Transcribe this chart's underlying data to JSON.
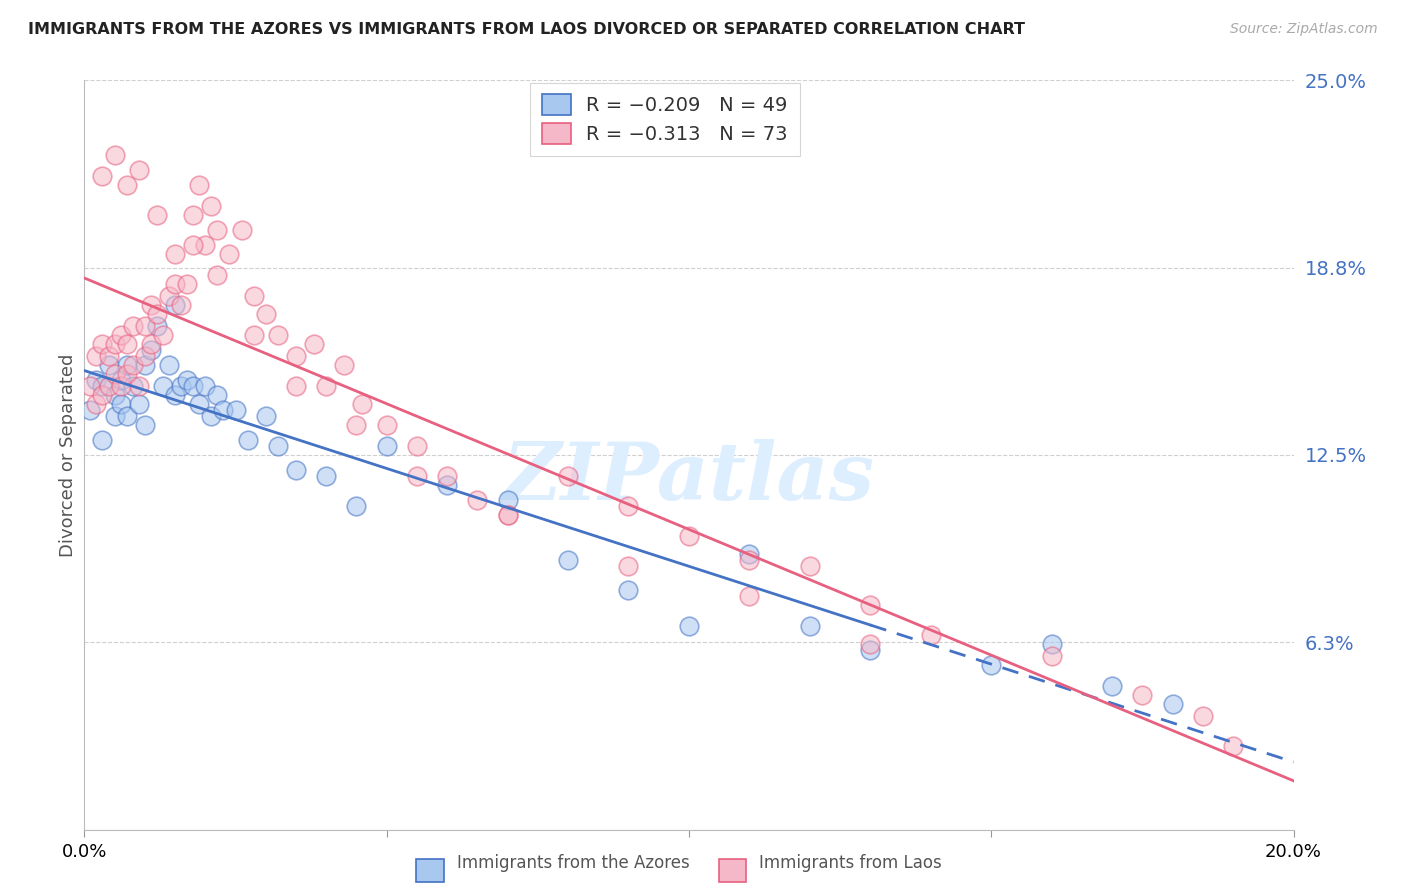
{
  "title": "IMMIGRANTS FROM THE AZORES VS IMMIGRANTS FROM LAOS DIVORCED OR SEPARATED CORRELATION CHART",
  "source": "Source: ZipAtlas.com",
  "ylabel": "Divorced or Separated",
  "xmin": 0.0,
  "xmax": 0.2,
  "ymin": 0.0,
  "ymax": 0.25,
  "yticks": [
    0.0,
    0.0625,
    0.125,
    0.1875,
    0.25
  ],
  "ytick_labels": [
    "",
    "6.3%",
    "12.5%",
    "18.8%",
    "25.0%"
  ],
  "xticks": [
    0.0,
    0.05,
    0.1,
    0.15,
    0.2
  ],
  "xtick_labels": [
    "0.0%",
    "",
    "",
    "",
    "20.0%"
  ],
  "legend_r1": "R = −0.209",
  "legend_n1": "N = 49",
  "legend_r2": "R = −0.313",
  "legend_n2": "N = 73",
  "color_azores": "#a8c8f0",
  "color_laos": "#f5b8c8",
  "color_line_azores": "#4472c4",
  "color_line_laos": "#e86080",
  "watermark": "ZIPatlas",
  "watermark_color": "#ddeeff",
  "azores_x": [
    0.001,
    0.002,
    0.003,
    0.003,
    0.004,
    0.005,
    0.005,
    0.006,
    0.006,
    0.007,
    0.007,
    0.008,
    0.009,
    0.01,
    0.01,
    0.011,
    0.012,
    0.013,
    0.014,
    0.015,
    0.015,
    0.016,
    0.017,
    0.018,
    0.019,
    0.02,
    0.021,
    0.022,
    0.023,
    0.025,
    0.027,
    0.03,
    0.032,
    0.035,
    0.04,
    0.045,
    0.05,
    0.06,
    0.07,
    0.08,
    0.09,
    0.1,
    0.11,
    0.12,
    0.13,
    0.15,
    0.16,
    0.17,
    0.18
  ],
  "azores_y": [
    0.14,
    0.15,
    0.148,
    0.13,
    0.155,
    0.145,
    0.138,
    0.15,
    0.142,
    0.155,
    0.138,
    0.148,
    0.142,
    0.155,
    0.135,
    0.16,
    0.168,
    0.148,
    0.155,
    0.175,
    0.145,
    0.148,
    0.15,
    0.148,
    0.142,
    0.148,
    0.138,
    0.145,
    0.14,
    0.14,
    0.13,
    0.138,
    0.128,
    0.12,
    0.118,
    0.108,
    0.128,
    0.115,
    0.11,
    0.09,
    0.08,
    0.068,
    0.092,
    0.068,
    0.06,
    0.055,
    0.062,
    0.048,
    0.042
  ],
  "laos_x": [
    0.001,
    0.002,
    0.002,
    0.003,
    0.003,
    0.004,
    0.004,
    0.005,
    0.005,
    0.006,
    0.006,
    0.007,
    0.007,
    0.008,
    0.008,
    0.009,
    0.01,
    0.01,
    0.011,
    0.011,
    0.012,
    0.013,
    0.014,
    0.015,
    0.016,
    0.017,
    0.018,
    0.019,
    0.02,
    0.021,
    0.022,
    0.024,
    0.026,
    0.028,
    0.03,
    0.032,
    0.035,
    0.038,
    0.04,
    0.043,
    0.046,
    0.05,
    0.055,
    0.06,
    0.065,
    0.07,
    0.08,
    0.09,
    0.1,
    0.11,
    0.12,
    0.13,
    0.14,
    0.003,
    0.005,
    0.007,
    0.009,
    0.012,
    0.015,
    0.018,
    0.022,
    0.028,
    0.035,
    0.045,
    0.055,
    0.07,
    0.09,
    0.11,
    0.13,
    0.16,
    0.175,
    0.185,
    0.19
  ],
  "laos_y": [
    0.148,
    0.158,
    0.142,
    0.162,
    0.145,
    0.158,
    0.148,
    0.162,
    0.152,
    0.165,
    0.148,
    0.162,
    0.152,
    0.168,
    0.155,
    0.148,
    0.168,
    0.158,
    0.175,
    0.162,
    0.172,
    0.165,
    0.178,
    0.182,
    0.175,
    0.182,
    0.205,
    0.215,
    0.195,
    0.208,
    0.2,
    0.192,
    0.2,
    0.178,
    0.172,
    0.165,
    0.158,
    0.162,
    0.148,
    0.155,
    0.142,
    0.135,
    0.128,
    0.118,
    0.11,
    0.105,
    0.118,
    0.108,
    0.098,
    0.09,
    0.088,
    0.075,
    0.065,
    0.218,
    0.225,
    0.215,
    0.22,
    0.205,
    0.192,
    0.195,
    0.185,
    0.165,
    0.148,
    0.135,
    0.118,
    0.105,
    0.088,
    0.078,
    0.062,
    0.058,
    0.045,
    0.038,
    0.028
  ]
}
